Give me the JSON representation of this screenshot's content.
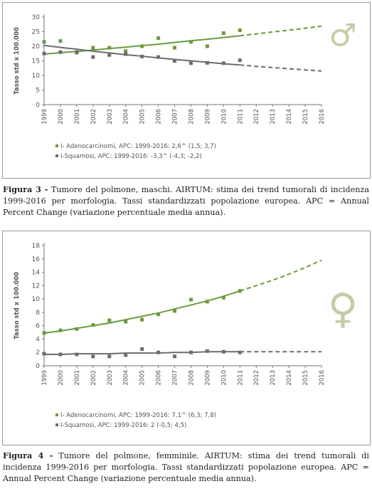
{
  "chart_data": [
    {
      "type": "line",
      "x": [
        "1999",
        "2000",
        "2001",
        "2002",
        "2003",
        "2004",
        "2005",
        "2006",
        "2007",
        "2008",
        "2009",
        "2010",
        "2011",
        "2012",
        "2013",
        "2014",
        "2015",
        "2016"
      ],
      "ylabel": "Tasso std x 100.000",
      "ylim": [
        0,
        30
      ],
      "yticks": [
        0,
        5,
        10,
        15,
        20,
        25,
        30
      ],
      "grid": false,
      "legend_position": "bottom-left",
      "symbol": "♂",
      "series": [
        {
          "name": "I- Adenocarcinomi, APC: 1999-2016: 2,6^ (1,5; 3,7)",
          "color": "#6a9a3e",
          "observed": [
            21.5,
            21.8,
            17.8,
            19.5,
            19.5,
            18.3,
            20.0,
            22.8,
            19.5,
            21.5,
            20.0,
            24.5,
            25.5
          ],
          "trend": [
            17.3,
            17.8,
            18.2,
            18.7,
            19.2,
            19.7,
            20.2,
            20.7,
            21.3,
            21.9,
            22.4,
            23.0,
            23.6,
            24.2,
            24.9,
            25.5,
            26.2,
            26.9
          ]
        },
        {
          "name": "I-Squamosi, APC: 1999-2016: -3,3^ (-4,3; -2,2)",
          "color": "#6d6d6d",
          "observed": [
            17.5,
            18.0,
            18.0,
            16.3,
            17.0,
            17.3,
            16.5,
            16.3,
            15.0,
            14.2,
            14.3,
            14.2,
            15.2
          ],
          "trend": [
            20.3,
            19.6,
            19.0,
            18.3,
            17.7,
            17.1,
            16.6,
            16.0,
            15.5,
            15.0,
            14.5,
            14.0,
            13.6,
            13.1,
            12.7,
            12.3,
            11.9,
            11.5
          ]
        }
      ]
    },
    {
      "type": "line",
      "x": [
        "1999",
        "2000",
        "2001",
        "2002",
        "2003",
        "2004",
        "2005",
        "2006",
        "2007",
        "2008",
        "2009",
        "2010",
        "2011",
        "2012",
        "2013",
        "2014",
        "2015",
        "2016"
      ],
      "ylabel": "Tasso std x 100.000",
      "ylim": [
        0,
        18
      ],
      "yticks": [
        0,
        2,
        4,
        6,
        8,
        10,
        12,
        14,
        16,
        18
      ],
      "grid": false,
      "legend_position": "bottom-left",
      "symbol": "♀",
      "series": [
        {
          "name": "I- Adenocarcinomi, APC: 1999-2016: 7,1^ (6,3; 7,8)",
          "color": "#6a9a3e",
          "observed": [
            4.9,
            5.3,
            5.5,
            6.1,
            6.8,
            6.6,
            6.9,
            7.7,
            8.2,
            9.9,
            9.6,
            10.2,
            11.2
          ],
          "trend": [
            4.9,
            5.2,
            5.6,
            6.0,
            6.4,
            6.9,
            7.4,
            7.9,
            8.5,
            9.1,
            9.7,
            10.4,
            11.2,
            12.0,
            12.8,
            13.7,
            14.7,
            15.8
          ]
        },
        {
          "name": "I-Squamosi, APC: 1999-2016: 2 (-0,5; 4,5)",
          "color": "#6d6d6d",
          "observed": [
            1.8,
            1.7,
            1.7,
            1.4,
            1.4,
            1.6,
            2.5,
            2.0,
            1.4,
            2.0,
            2.2,
            2.1,
            2.0
          ],
          "trend": [
            1.7,
            1.7,
            1.8,
            1.8,
            1.8,
            1.9,
            1.9,
            1.9,
            2.0,
            2.0,
            2.1,
            2.1,
            2.1,
            2.1,
            2.1,
            2.1,
            2.1,
            2.1
          ]
        }
      ]
    }
  ],
  "captions": [
    {
      "label": "Figura 3 -",
      "text": " Tumore del polmone, maschi. AIRTUM: stima dei trend tumorali di incidenza 1999-2016 per morfologia. Tassi standardizzati popolazione europea. APC = Annual Percent Change (variazione percentuale media annua)."
    },
    {
      "label": "Figura 4 -",
      "text": " Tumore del polmone, femminile. AIRTUM: stima dei trend tumorali di incidenza 1999-2016 per morfologia. Tassi standardizzati popolazione europea. APC = Annual Percent Change (variazione percentuale media annua)."
    }
  ]
}
